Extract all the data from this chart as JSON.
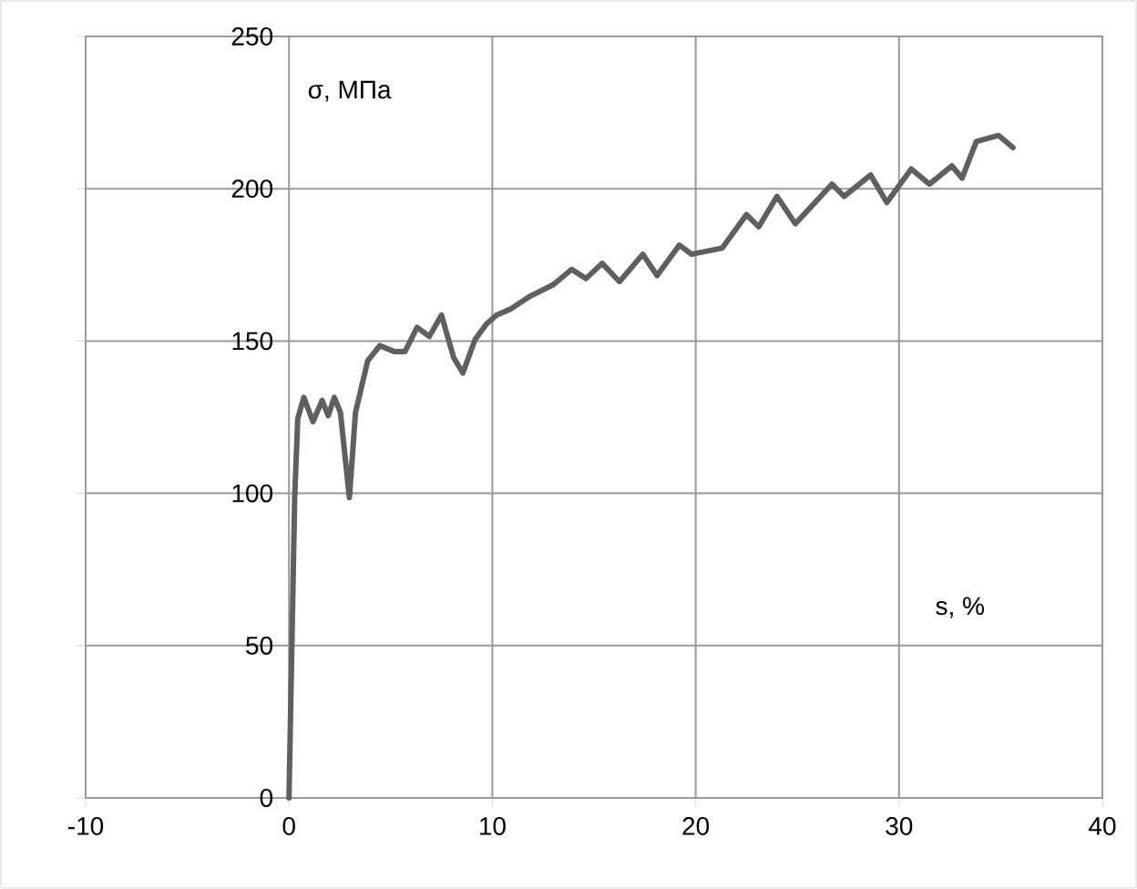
{
  "chart_data": {
    "type": "line",
    "xlabel": "s, %",
    "ylabel": "σ, МПа",
    "xlim": [
      -10,
      40
    ],
    "xticks": [
      -10,
      0,
      10,
      20,
      30,
      40
    ],
    "ylim": [
      0,
      250
    ],
    "yticks": [
      0,
      50,
      100,
      150,
      200,
      250
    ],
    "grid": true,
    "marker": "none",
    "line_style": "solid",
    "series": [
      {
        "color": "#5f5f5f",
        "x": [
          0,
          0.28,
          0.43,
          0.73,
          1.18,
          1.63,
          1.93,
          2.23,
          2.53,
          2.97,
          3.27,
          3.87,
          4.47,
          5.2,
          5.7,
          6.3,
          6.9,
          7.5,
          8.1,
          8.55,
          9.15,
          9.7,
          10.2,
          10.9,
          11.8,
          13.0,
          13.9,
          14.6,
          15.4,
          16.25,
          17.4,
          18.1,
          19.2,
          19.8,
          21.3,
          22.5,
          23.1,
          24.0,
          24.9,
          26.7,
          27.3,
          28.6,
          29.4,
          30.6,
          31.5,
          32.6,
          33.1,
          33.8,
          34.9,
          35.6
        ],
        "values": [
          0,
          98.6,
          124.5,
          131.5,
          123.5,
          130.5,
          125.5,
          131.5,
          126.5,
          98.6,
          126.5,
          143.5,
          148.5,
          146.5,
          146.5,
          154.5,
          151.5,
          158.5,
          144.5,
          139.5,
          150.5,
          155.5,
          158.5,
          160.5,
          164.5,
          168.5,
          173.5,
          170.5,
          175.5,
          169.5,
          178.5,
          171.5,
          181.5,
          178.5,
          180.5,
          191.5,
          187.5,
          197.5,
          188.5,
          201.5,
          197.5,
          204.5,
          195.5,
          206.5,
          201.5,
          207.5,
          203.5,
          215.5,
          217.5,
          213.5
        ]
      }
    ]
  }
}
